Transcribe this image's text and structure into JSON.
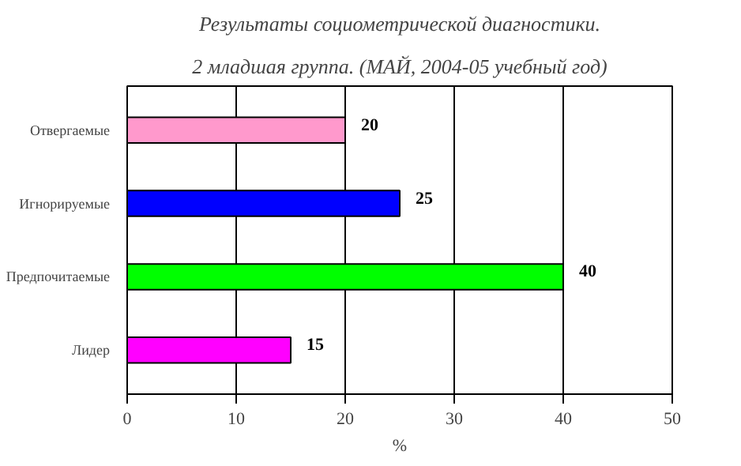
{
  "chart_data": {
    "type": "bar",
    "orientation": "horizontal",
    "title": "Результаты социометрической диагностики.",
    "subtitle": "2 младшая группа. (МАЙ, 2004-05 учебный год)",
    "categories": [
      "Отвергаемые",
      "Игнорируемые",
      "Предпочитаемые",
      "Лидер"
    ],
    "values": [
      20,
      25,
      40,
      15
    ],
    "colors": [
      "#ff99cc",
      "#0000ff",
      "#00ff00",
      "#ff00ff"
    ],
    "xlabel": "%",
    "xlim": [
      0,
      50
    ],
    "xticks": [
      0,
      10,
      20,
      30,
      40,
      50
    ],
    "grid": "x",
    "data_labels": true
  }
}
